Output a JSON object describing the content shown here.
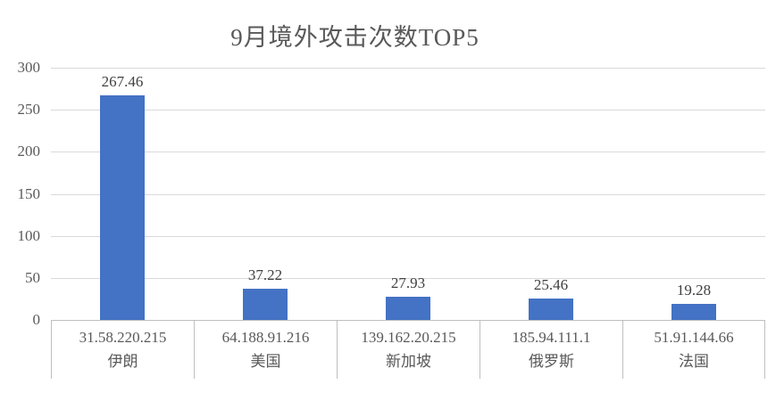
{
  "chart_data": {
    "type": "bar",
    "title": "9月境外攻击次数TOP5",
    "categories": [
      "31.58.220.215",
      "64.188.91.216",
      "139.162.20.215",
      "185.94.111.1",
      "51.91.144.66"
    ],
    "category_sublabels": [
      "伊朗",
      "美国",
      "新加坡",
      "俄罗斯",
      "法国"
    ],
    "values": [
      267.46,
      37.22,
      27.93,
      25.46,
      19.28
    ],
    "data_labels": [
      "267.46",
      "37.22",
      "27.93",
      "25.46",
      "19.28"
    ],
    "xlabel": "",
    "ylabel": "",
    "ylim": [
      0,
      300
    ],
    "y_ticks": [
      0,
      50,
      100,
      150,
      200,
      250,
      300
    ],
    "grid": "horizontal",
    "legend": "none",
    "colors": {
      "bar": "#4472c4",
      "title_text": "#595959",
      "tick_text": "#595959",
      "data_label_text": "#404040",
      "category_text": "#595959",
      "gridline": "#d9d9d9",
      "axis_line": "#bfbfbf",
      "background": "#ffffff"
    }
  }
}
